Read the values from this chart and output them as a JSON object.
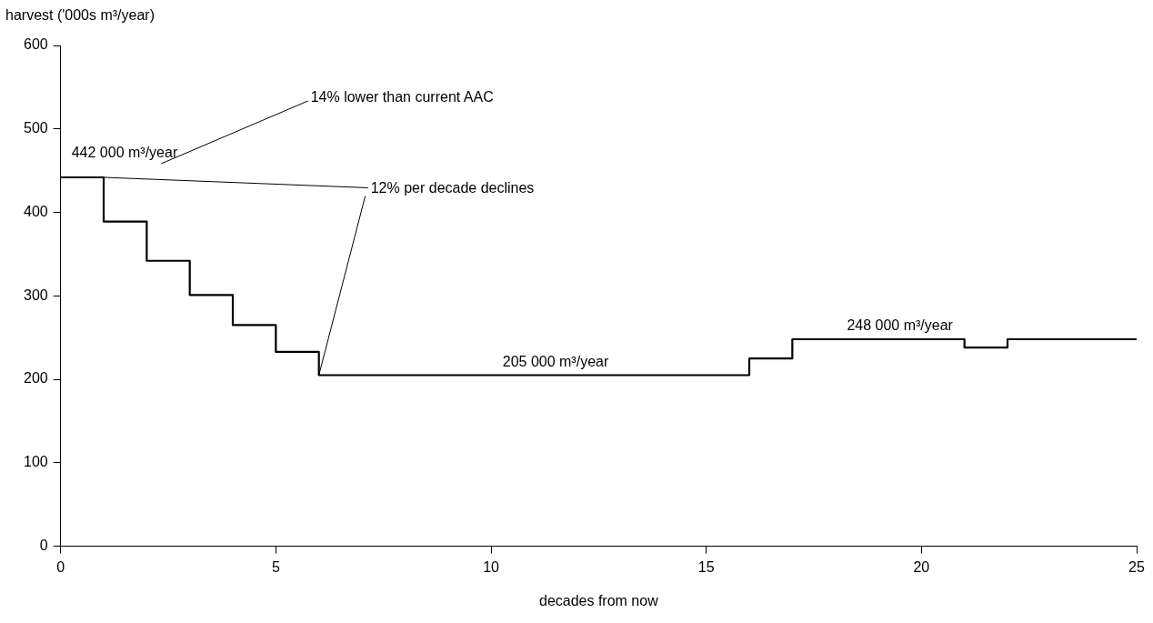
{
  "chart_data": {
    "type": "step",
    "xlabel": "decades from now",
    "ylabel": "harvest ('000s m³/year)",
    "x": [
      0,
      1,
      2,
      3,
      4,
      5,
      6,
      16,
      17,
      21,
      22,
      25
    ],
    "series": [
      {
        "color": "#000000",
        "values": [
          442,
          389,
          342,
          301,
          265,
          233,
          205,
          225,
          248,
          238,
          248,
          248
        ]
      }
    ],
    "xlim": [
      0,
      25
    ],
    "xticks": [
      0,
      5,
      10,
      15,
      20,
      25
    ],
    "ylim": [
      0,
      600
    ],
    "yticks": [
      0,
      100,
      200,
      300,
      400,
      500,
      600
    ],
    "grid": false,
    "legend": false,
    "marker": "none",
    "line_style": "solid",
    "annotations": [
      {
        "text": "442 000 m³/year",
        "x": 0,
        "y": 442
      },
      "14% lower than current AAC",
      {
        "text": "12% per decade declines",
        "x": 6,
        "y": 205
      },
      {
        "text": "205 000 m³/year",
        "x": 11.5,
        "y": 205
      },
      {
        "text": "248 000 m³/year",
        "x": 19.5,
        "y": 248
      }
    ]
  }
}
